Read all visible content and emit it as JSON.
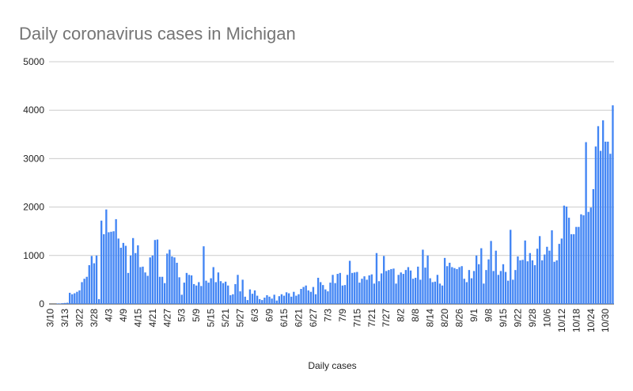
{
  "chart_data": {
    "type": "bar",
    "title": "Daily coronavirus cases in Michigan",
    "x_label": "Daily cases",
    "color": "#4285f4",
    "grid": true,
    "ylim": [
      0,
      5000
    ],
    "yticks": [
      0,
      1000,
      2000,
      3000,
      4000,
      5000
    ],
    "categories": [
      "3/10",
      null,
      null,
      null,
      null,
      null,
      "3/13",
      null,
      null,
      null,
      null,
      null,
      "3/22",
      null,
      null,
      null,
      null,
      null,
      "3/28",
      null,
      null,
      null,
      null,
      null,
      "4/3",
      null,
      null,
      null,
      null,
      null,
      "4/9",
      null,
      null,
      null,
      null,
      null,
      "4/15",
      null,
      null,
      null,
      null,
      null,
      "4/21",
      null,
      null,
      null,
      null,
      null,
      "4/27",
      null,
      null,
      null,
      null,
      null,
      "5/3",
      null,
      null,
      null,
      null,
      null,
      "5/9",
      null,
      null,
      null,
      null,
      null,
      "5/15",
      null,
      null,
      null,
      null,
      null,
      "5/21",
      null,
      null,
      null,
      null,
      null,
      "5/27",
      null,
      null,
      null,
      null,
      null,
      "6/3",
      null,
      null,
      null,
      null,
      null,
      "6/9",
      null,
      null,
      null,
      null,
      null,
      "6/15",
      null,
      null,
      null,
      null,
      null,
      "6/21",
      null,
      null,
      null,
      null,
      null,
      "6/27",
      null,
      null,
      null,
      null,
      null,
      "7/3",
      null,
      null,
      null,
      null,
      null,
      "7/9",
      null,
      null,
      null,
      null,
      null,
      "7/15",
      null,
      null,
      null,
      null,
      null,
      "7/21",
      null,
      null,
      null,
      null,
      null,
      "7/27",
      null,
      null,
      null,
      null,
      null,
      "8/2",
      null,
      null,
      null,
      null,
      null,
      "8/8",
      null,
      null,
      null,
      null,
      null,
      "8/14",
      null,
      null,
      null,
      null,
      null,
      "8/20",
      null,
      null,
      null,
      null,
      null,
      "8/26",
      null,
      null,
      null,
      null,
      null,
      "9/1",
      null,
      null,
      null,
      null,
      null,
      "9/8",
      null,
      null,
      null,
      null,
      null,
      "9/15",
      null,
      null,
      null,
      null,
      null,
      "9/22",
      null,
      null,
      null,
      null,
      null,
      "9/28",
      null,
      null,
      null,
      null,
      null,
      "10/6",
      null,
      null,
      null,
      null,
      null,
      "10/12",
      null,
      null,
      null,
      null,
      null,
      "10/18",
      null,
      null,
      null,
      null,
      null,
      "10/24",
      null,
      null,
      null,
      null,
      null,
      "10/30",
      null,
      null,
      null
    ],
    "values": [
      0,
      0,
      0,
      10,
      10,
      15,
      20,
      25,
      230,
      200,
      220,
      250,
      280,
      450,
      520,
      560,
      800,
      990,
      840,
      1000,
      100,
      1720,
      1440,
      1950,
      1480,
      1490,
      1500,
      1750,
      1350,
      1160,
      1260,
      1200,
      640,
      1000,
      1360,
      1050,
      1210,
      760,
      770,
      650,
      580,
      960,
      1000,
      1320,
      1330,
      560,
      560,
      430,
      1040,
      1120,
      980,
      960,
      850,
      550,
      190,
      440,
      640,
      600,
      590,
      410,
      380,
      450,
      370,
      1190,
      480,
      440,
      530,
      760,
      450,
      650,
      470,
      430,
      460,
      380,
      180,
      200,
      410,
      600,
      260,
      500,
      150,
      80,
      300,
      210,
      280,
      170,
      100,
      80,
      130,
      180,
      150,
      110,
      190,
      70,
      160,
      200,
      170,
      240,
      220,
      150,
      250,
      170,
      200,
      310,
      350,
      380,
      280,
      250,
      350,
      200,
      540,
      450,
      390,
      300,
      260,
      440,
      600,
      430,
      620,
      640,
      380,
      390,
      600,
      890,
      640,
      650,
      660,
      440,
      520,
      570,
      500,
      590,
      610,
      420,
      1050,
      470,
      630,
      990,
      680,
      700,
      720,
      730,
      420,
      600,
      650,
      620,
      700,
      760,
      690,
      520,
      540,
      770,
      500,
      1120,
      750,
      1000,
      530,
      450,
      460,
      600,
      420,
      380,
      950,
      780,
      850,
      760,
      740,
      720,
      760,
      780,
      520,
      450,
      700,
      530,
      680,
      1000,
      820,
      1150,
      420,
      700,
      920,
      1300,
      680,
      1100,
      600,
      680,
      820,
      660,
      480,
      1530,
      500,
      700,
      980,
      900,
      910,
      1310,
      880,
      1050,
      900,
      800,
      1140,
      1400,
      900,
      1020,
      1180,
      1100,
      1520,
      870,
      900,
      1240,
      1350,
      2030,
      2010,
      1780,
      1440,
      1440,
      1590,
      1590,
      1850,
      1830,
      3340,
      1900,
      1990,
      2370,
      3250,
      3670,
      3160,
      3790,
      3350,
      3350,
      3100,
      4100
    ]
  }
}
